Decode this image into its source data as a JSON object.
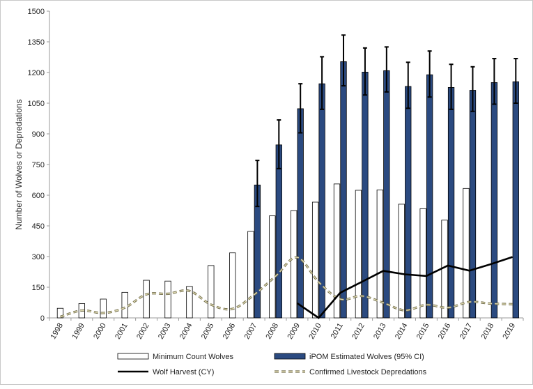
{
  "chart_data": {
    "type": "bar",
    "title": "",
    "xlabel": "",
    "ylabel": "Number of Wolves or Depredations",
    "ylim": [
      0,
      1500
    ],
    "yticks": [
      0,
      150,
      300,
      450,
      600,
      750,
      900,
      1050,
      1200,
      1350,
      1500
    ],
    "categories": [
      "1998",
      "1999",
      "2000",
      "2001",
      "2002",
      "2003",
      "2004",
      "2005",
      "2006",
      "2007",
      "2008",
      "2009",
      "2010",
      "2011",
      "2012",
      "2013",
      "2014",
      "2015",
      "2016",
      "2017",
      "2018",
      "2019"
    ],
    "series": [
      {
        "name": "Minimum Count Wolves",
        "kind": "bar",
        "color": "#ffffff",
        "stroke": "#000000",
        "values": [
          47,
          70,
          92,
          125,
          184,
          180,
          154,
          256,
          318,
          423,
          499,
          525,
          566,
          655,
          624,
          626,
          556,
          534,
          478,
          633,
          null,
          null
        ]
      },
      {
        "name": "iPOM Estimated Wolves (95% CI)",
        "kind": "bar",
        "color": "#2b4a80",
        "stroke": "#000000",
        "values": [
          null,
          null,
          null,
          null,
          null,
          null,
          null,
          null,
          null,
          650,
          846,
          1023,
          1145,
          1253,
          1202,
          1209,
          1132,
          1189,
          1127,
          1113,
          1151,
          1155
        ],
        "ci_low": [
          null,
          null,
          null,
          null,
          null,
          null,
          null,
          null,
          null,
          545,
          730,
          905,
          1020,
          1135,
          1090,
          1105,
          1025,
          1080,
          1020,
          1010,
          1045,
          1050
        ],
        "ci_high": [
          null,
          null,
          null,
          null,
          null,
          null,
          null,
          null,
          null,
          770,
          968,
          1145,
          1277,
          1383,
          1320,
          1325,
          1250,
          1305,
          1240,
          1228,
          1268,
          1268
        ]
      },
      {
        "name": "Wolf Harvest (CY)",
        "kind": "line",
        "color": "#000000",
        "values": [
          null,
          null,
          null,
          null,
          null,
          null,
          null,
          null,
          null,
          null,
          null,
          72,
          0,
          123,
          176,
          230,
          213,
          205,
          256,
          231,
          263,
          298
        ]
      },
      {
        "name": "Confirmed Livestock Depredations",
        "kind": "dashed-line",
        "color": "#b8b38a",
        "values": [
          5,
          36,
          24,
          50,
          115,
          118,
          132,
          65,
          44,
          113,
          204,
          296,
          175,
          92,
          107,
          74,
          37,
          64,
          50,
          78,
          70,
          67
        ]
      }
    ],
    "legend": [
      "Minimum Count Wolves",
      "iPOM Estimated Wolves (95% CI)",
      "Wolf Harvest (CY)",
      "Confirmed Livestock Depredations"
    ],
    "legend_position": "bottom",
    "grid": false
  }
}
